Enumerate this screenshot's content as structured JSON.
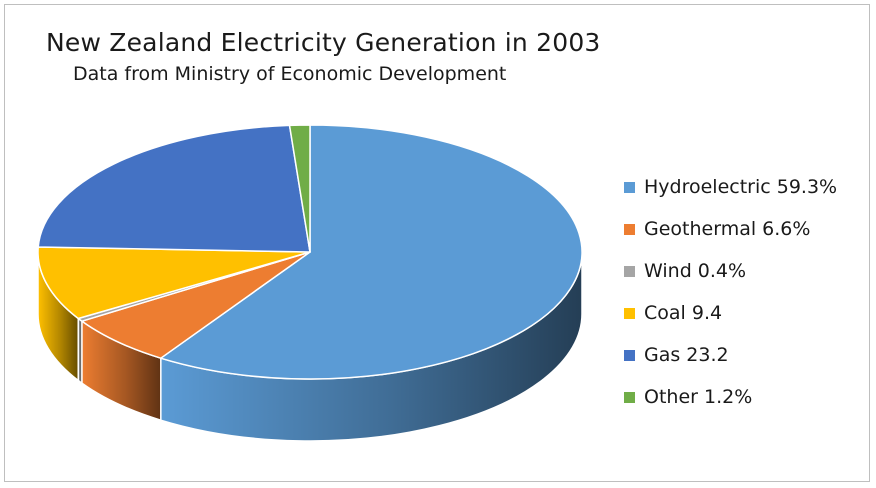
{
  "chart_data": {
    "type": "pie",
    "title": "New Zealand Electricity Generation in 2003",
    "subtitle": "Data from Ministry of Economic Development",
    "legend_position": "right",
    "slices": [
      {
        "label": "Hydroelectric 59.3%",
        "value": 59.3,
        "color": "#5b9bd5"
      },
      {
        "label": "Geothermal 6.6%",
        "value": 6.6,
        "color": "#ed7d31"
      },
      {
        "label": "Wind 0.4%",
        "value": 0.4,
        "color": "#a5a5a5"
      },
      {
        "label": "Coal 9.4",
        "value": 9.4,
        "color": "#ffc000"
      },
      {
        "label": "Gas 23.2",
        "value": 23.2,
        "color": "#4472c4"
      },
      {
        "label": "Other 1.2%",
        "value": 1.2,
        "color": "#70ad47"
      }
    ]
  }
}
